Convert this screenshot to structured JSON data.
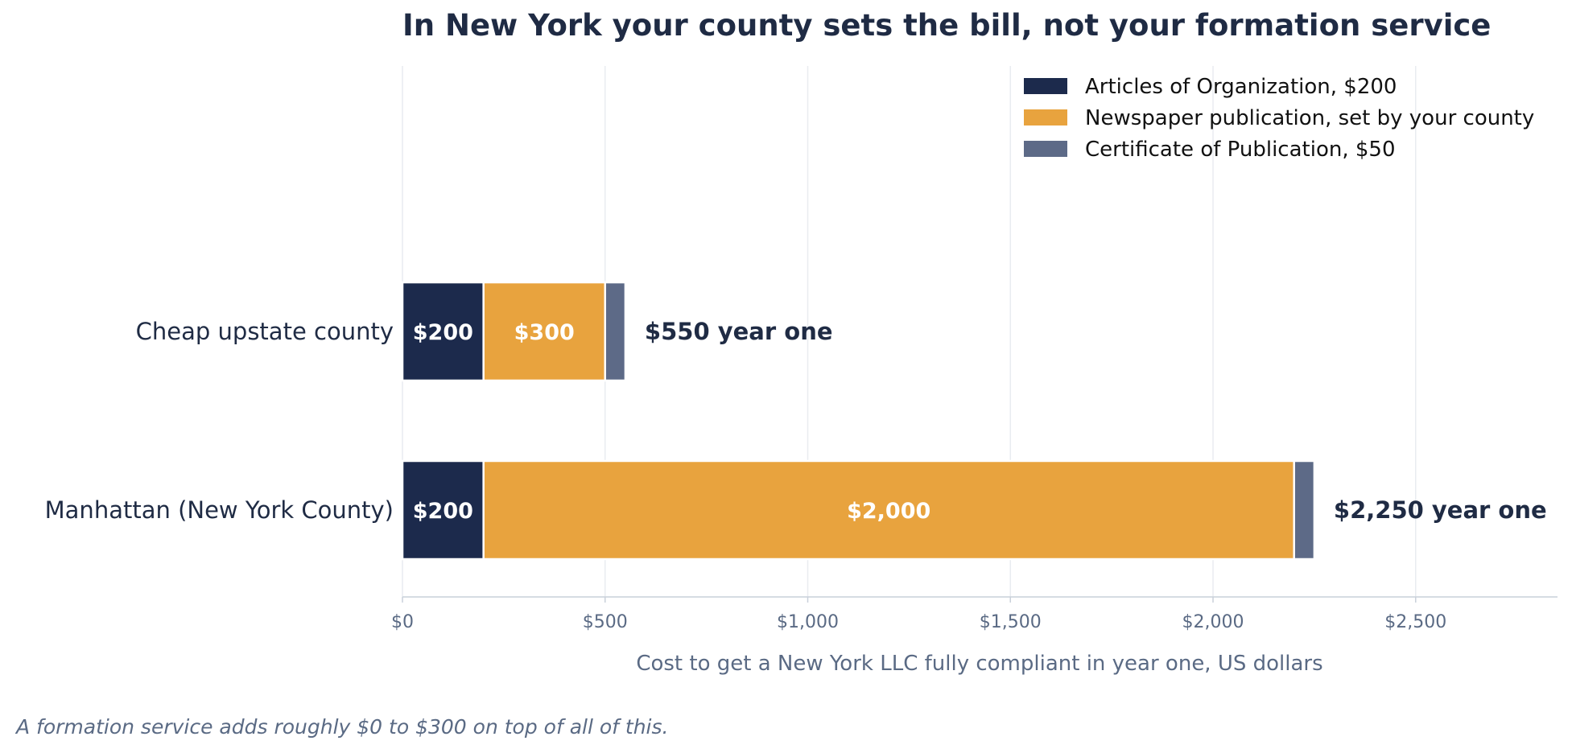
{
  "chart_data": {
    "type": "bar",
    "orientation": "horizontal",
    "stacked": true,
    "title": "In New York your county sets the bill, not your formation service",
    "xlabel": "Cost to get a New York LLC fully compliant in year one, US dollars",
    "ylabel": "",
    "xlim": [
      0,
      2850
    ],
    "xticks": [
      0,
      500,
      1000,
      1500,
      2000,
      2500
    ],
    "xtick_labels": [
      "$0",
      "$500",
      "$1,000",
      "$1,500",
      "$2,000",
      "$2,500"
    ],
    "categories": [
      "Cheap upstate county",
      "Manhattan (New York County)"
    ],
    "series": [
      {
        "name": "Articles of Organization, $200",
        "color": "#1c2a4c",
        "values": [
          200,
          200
        ],
        "labels": [
          "$200",
          "$200"
        ]
      },
      {
        "name": "Newspaper publication, set by your county",
        "color": "#e8a33e",
        "values": [
          300,
          2000
        ],
        "labels": [
          "$300",
          "$2,000"
        ]
      },
      {
        "name": "Certificate of Publication, $50",
        "color": "#5d6a87",
        "values": [
          50,
          50
        ],
        "labels": [
          "",
          ""
        ]
      }
    ],
    "totals": [
      550,
      2250
    ],
    "total_labels": [
      "$550 year one",
      "$2,250 year one"
    ],
    "grid": "vertical",
    "legend_position": "top-right",
    "footnote": "A formation service adds roughly $0 to $300 on top of all of this."
  }
}
